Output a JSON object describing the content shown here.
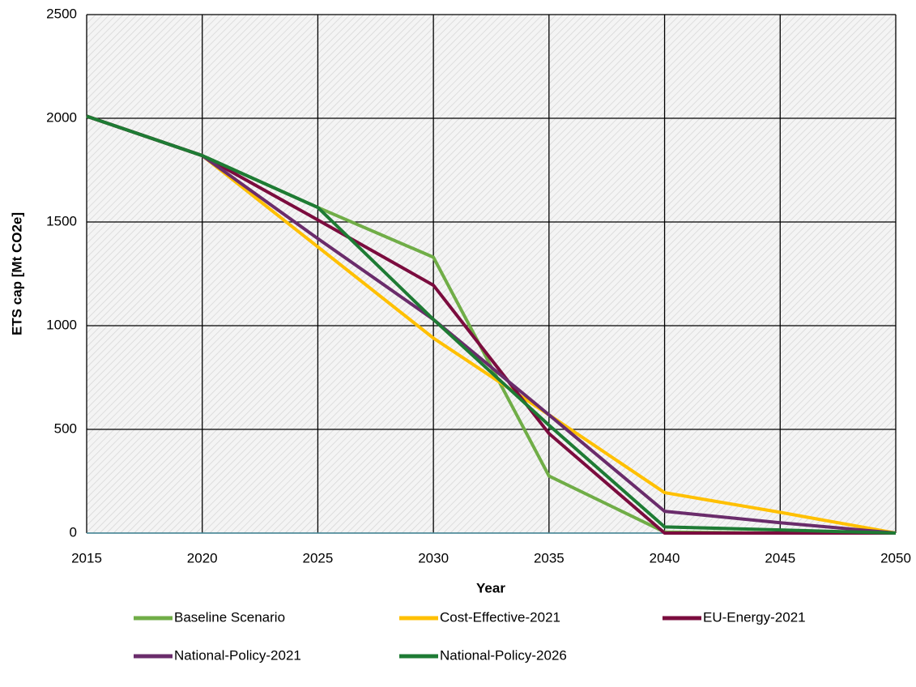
{
  "chart_data": {
    "type": "line",
    "xlabel": "Year",
    "ylabel": "ETS cap  [Mt CO2e]",
    "x": [
      2015,
      2020,
      2025,
      2030,
      2035,
      2040,
      2045,
      2050
    ],
    "series": [
      {
        "name": "Baseline Scenario",
        "color": "#70ad47",
        "values": [
          2010,
          1820,
          1570,
          1330,
          275,
          5,
          0,
          0
        ]
      },
      {
        "name": "Cost-Effective-2021",
        "color": "#ffc000",
        "values": [
          2010,
          1820,
          1380,
          940,
          570,
          195,
          100,
          0
        ]
      },
      {
        "name": "EU-Energy-2021",
        "color": "#7b0c3e",
        "values": [
          2010,
          1820,
          1510,
          1195,
          480,
          0,
          0,
          0
        ]
      },
      {
        "name": "National-Policy-2021",
        "color": "#6a2c6b",
        "values": [
          2010,
          1820,
          1420,
          1030,
          570,
          105,
          50,
          0
        ]
      },
      {
        "name": "National-Policy-2026",
        "color": "#1e7b34",
        "values": [
          2010,
          1820,
          1570,
          1030,
          520,
          30,
          15,
          0
        ]
      }
    ],
    "xlim": [
      2015,
      2050
    ],
    "xticks": [
      2015,
      2020,
      2025,
      2030,
      2035,
      2040,
      2045,
      2050
    ],
    "ylim": [
      0,
      2500
    ],
    "yticks": [
      0,
      500,
      1000,
      1500,
      2000,
      2500
    ],
    "grid": true,
    "legend": "bottom"
  }
}
